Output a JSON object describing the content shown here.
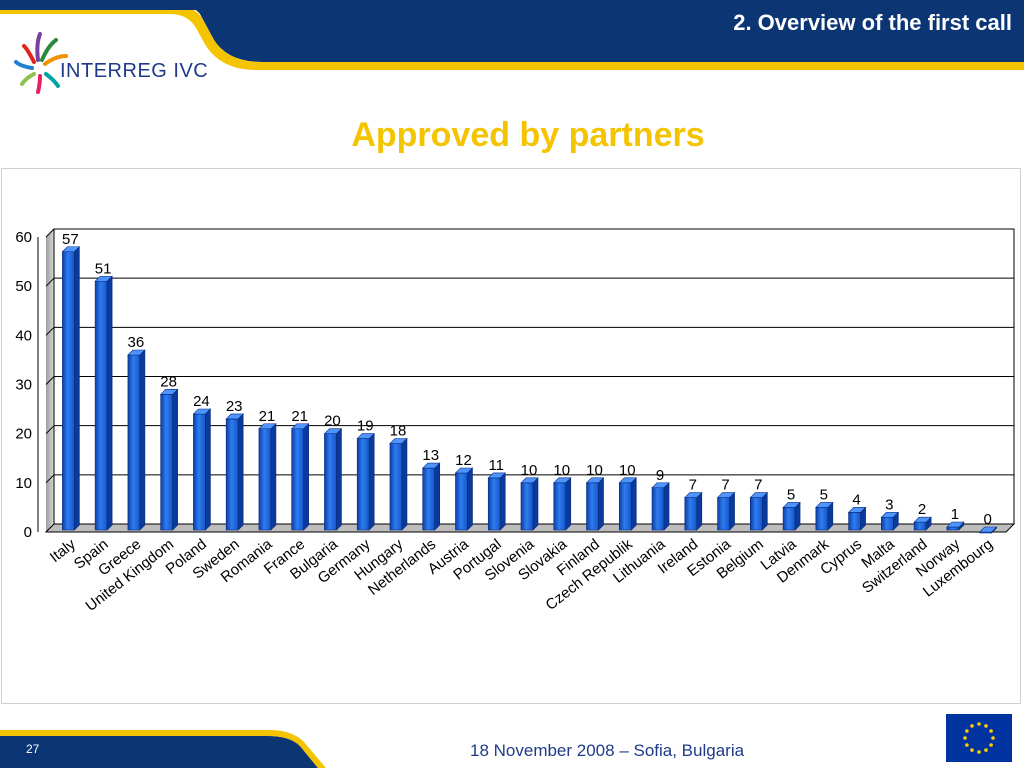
{
  "header": {
    "title": "2. Overview of the first call",
    "logo_text": "INTERREG IVC"
  },
  "slide": {
    "title": "Approved by partners"
  },
  "footer": {
    "page_number": "27",
    "date_location": "18 November 2008 – Sofia, Bulgaria"
  },
  "colors": {
    "navy": "#0c3574",
    "gold": "#f5c400",
    "bar": "#1560d6"
  },
  "chart_data": {
    "type": "bar",
    "title": "",
    "xlabel": "",
    "ylabel": "",
    "ylim": [
      0,
      60
    ],
    "yticks": [
      0,
      10,
      20,
      30,
      40,
      50,
      60
    ],
    "grid": true,
    "three_d": true,
    "categories": [
      "Italy",
      "Spain",
      "Greece",
      "United Kingdom",
      "Poland",
      "Sweden",
      "Romania",
      "France",
      "Bulgaria",
      "Germany",
      "Hungary",
      "Netherlands",
      "Austria",
      "Portugal",
      "Slovenia",
      "Slovakia",
      "Finland",
      "Czech Republik",
      "Lithuania",
      "Ireland",
      "Estonia",
      "Belgium",
      "Latvia",
      "Denmark",
      "Cyprus",
      "Malta",
      "Switzerland",
      "Norway",
      "Luxembourg"
    ],
    "values": [
      57,
      51,
      36,
      28,
      24,
      23,
      21,
      21,
      20,
      19,
      18,
      13,
      12,
      11,
      10,
      10,
      10,
      10,
      9,
      7,
      7,
      7,
      5,
      5,
      4,
      3,
      2,
      1,
      0
    ]
  }
}
